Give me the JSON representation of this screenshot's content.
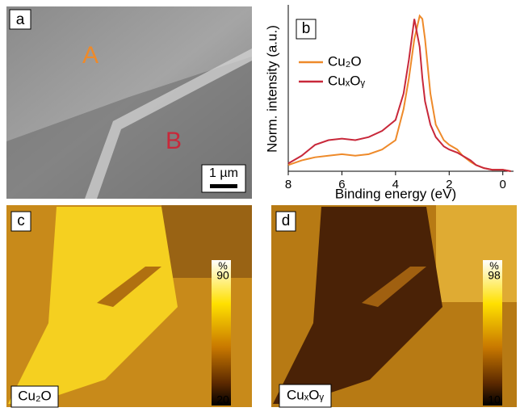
{
  "panels": {
    "a": {
      "label": "a",
      "regions": [
        "A",
        "B"
      ],
      "scale_bar": "1 µm"
    },
    "b": {
      "label": "b"
    }
  },
  "chart_data": {
    "type": "line",
    "xlabel": "Binding energy (eV)",
    "ylabel": "Norm. intensity (a.u.)",
    "x": [
      8,
      7.5,
      7,
      6.5,
      6,
      5.5,
      5,
      4.5,
      4,
      3.7,
      3.5,
      3.3,
      3.1,
      3.0,
      2.9,
      2.7,
      2.5,
      2.2,
      2,
      1.7,
      1.5,
      1.2,
      1,
      0.7,
      0.4,
      0,
      -0.3
    ],
    "series": [
      {
        "name": "Cu₂O",
        "color": "#ee8a2a",
        "values": [
          0.04,
          0.07,
          0.09,
          0.1,
          0.11,
          0.1,
          0.11,
          0.14,
          0.2,
          0.4,
          0.6,
          0.85,
          1.0,
          0.98,
          0.85,
          0.5,
          0.3,
          0.2,
          0.17,
          0.14,
          0.1,
          0.06,
          0.04,
          0.02,
          0.01,
          0.01,
          0.0
        ]
      },
      {
        "name": "CuₓOᵧ",
        "color": "#c8283a",
        "values": [
          0.05,
          0.1,
          0.17,
          0.2,
          0.21,
          0.2,
          0.22,
          0.26,
          0.33,
          0.5,
          0.72,
          0.98,
          0.8,
          0.6,
          0.45,
          0.3,
          0.22,
          0.16,
          0.14,
          0.12,
          0.1,
          0.07,
          0.04,
          0.02,
          0.01,
          0.01,
          0.0
        ]
      }
    ],
    "xlim": [
      8,
      -0.4
    ],
    "ylim": [
      0,
      1.05
    ],
    "xticks": [
      8,
      6,
      4,
      2,
      0
    ]
  },
  "maps": [
    {
      "label": "c",
      "name": "Cu₂O",
      "colorbar": {
        "unit": "%",
        "max": "90",
        "min": "20"
      }
    },
    {
      "label": "d",
      "name": "CuₓOᵧ",
      "colorbar": {
        "unit": "%",
        "max": "98",
        "min": "10"
      }
    }
  ]
}
